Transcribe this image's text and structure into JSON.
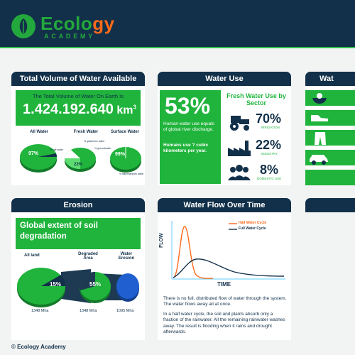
{
  "brand": {
    "title_main": "Ecology",
    "title_accent": "gy",
    "subtitle": "ACADEMY"
  },
  "colors": {
    "navy": "#123049",
    "green": "#20b43c",
    "orange": "#ff6a1c",
    "light_green": "#5ddc72",
    "blue_pie": "#1f5fcf"
  },
  "total_volume": {
    "header": "Total Volume of Water Available",
    "subtitle": "The Total Volume of Water On Earth Is",
    "value": "1.424.192.640",
    "unit": "km",
    "unit_sup": "3",
    "pies": [
      {
        "label": "All Water",
        "percent": "97%",
        "note": "% salt water"
      },
      {
        "label": "Fresh Water",
        "percent": "22%",
        "note": "% glacier/ice water"
      },
      {
        "label": "Surface Water",
        "percent": "99%",
        "note": "% lake/marshes water"
      }
    ],
    "pie_note_2": "% groundwater"
  },
  "water_use": {
    "header": "Water Use",
    "big_percent": "53%",
    "desc": "Human water use equals of global river discharge.",
    "question": "Humans use ? cubic kilometers per year.",
    "sector_title": "Fresh Water Use by Sector",
    "sectors": [
      {
        "value": "70%",
        "label": "IRRIGATION",
        "icon": "tractor-icon"
      },
      {
        "value": "22%",
        "label": "INDUSTRY",
        "icon": "factory-icon"
      },
      {
        "value": "8%",
        "label": "DOMESTIC USE",
        "icon": "people-icon"
      }
    ]
  },
  "right_card": {
    "header": "Wat",
    "icons": [
      "rice-bowl-icon",
      "shoe-icon",
      "jeans-icon",
      "car-icon"
    ]
  },
  "erosion": {
    "header": "Erosion",
    "banner": "Global extent of soil degradation",
    "labels": [
      "All land",
      "Degraded Area",
      "Water Erosion"
    ],
    "percents": [
      "15%",
      "55%"
    ],
    "values": [
      "1348 Mha",
      "1348 Mha",
      "1095 Mha"
    ]
  },
  "flow": {
    "header": "Water Flow Over Time",
    "legend": [
      "Half Water Cycle",
      "Full Water Cycle"
    ],
    "ylabel": "FLOW",
    "xlabel": "TIME",
    "para1": "There is no full, distributed flow of water through the system. The water flows away all at once.",
    "para2": "In a half water cycle, the soil and plants absorb only a fraction of the rainwater. All the remaining rainwater washes away. The result is flooding when it rains and drought afterwards."
  },
  "footer": "© Ecology Academy"
}
